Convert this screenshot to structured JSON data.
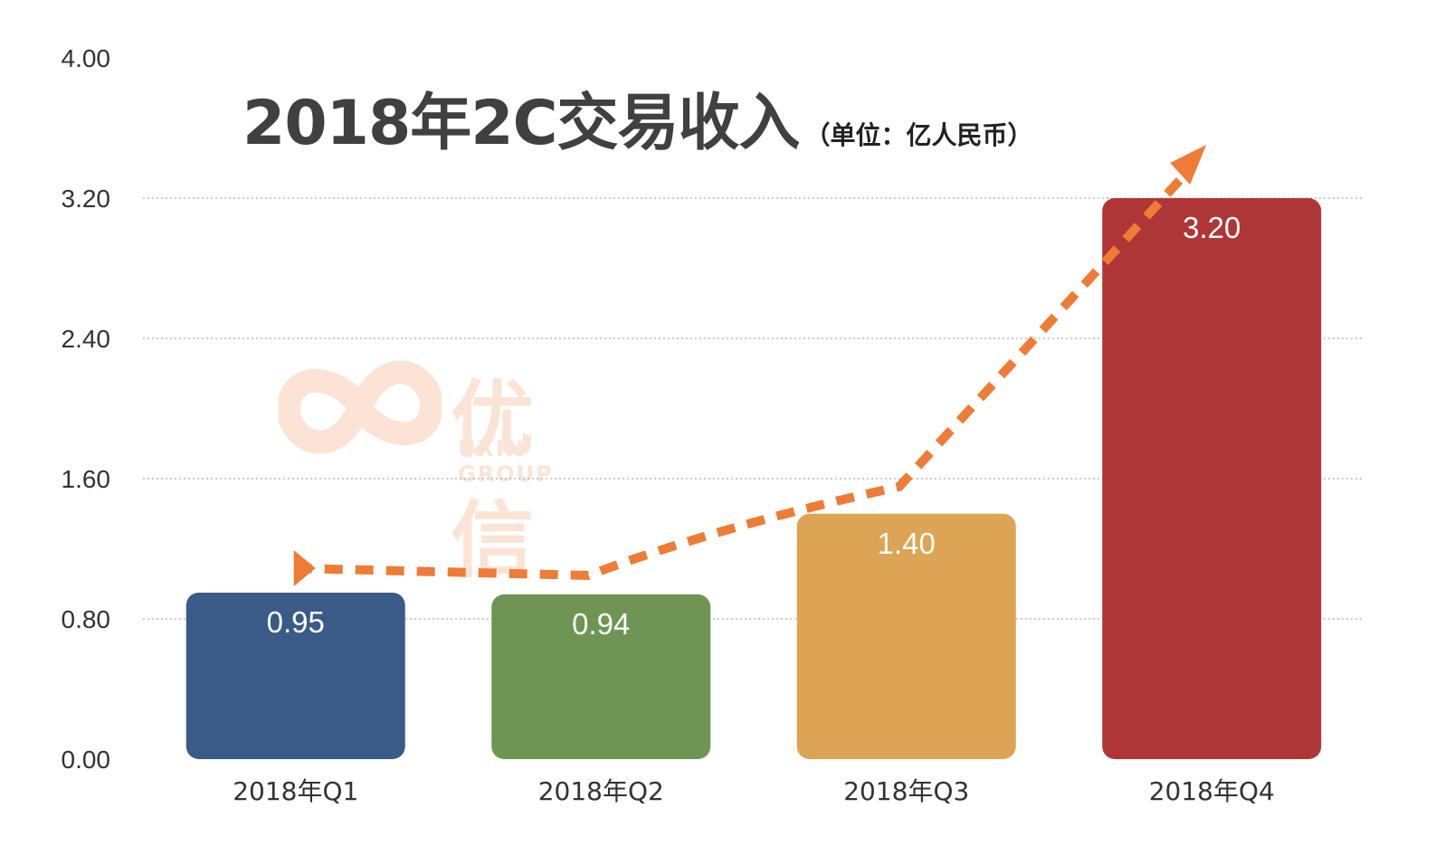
{
  "chart_data": {
    "type": "bar",
    "title": "2018年2C交易收入",
    "subtitle": "（单位：亿人民币）",
    "categories": [
      "2018年Q1",
      "2018年Q2",
      "2018年Q3",
      "2018年Q4"
    ],
    "values": [
      0.95,
      0.94,
      1.4,
      3.2
    ],
    "value_labels": [
      "0.95",
      "0.94",
      "1.40",
      "3.20"
    ],
    "ylim": [
      0,
      4.0
    ],
    "yticks": [
      "0.00",
      "0.80",
      "1.60",
      "2.40",
      "3.20",
      "4.00"
    ],
    "grid": true,
    "bar_colors": [
      "#3a5a87",
      "#6e9553",
      "#dca454",
      "#ae3636"
    ],
    "trend_arrow": {
      "color": "#ee7c36",
      "style": "dashed"
    }
  },
  "watermark": {
    "brand_cn": "优信",
    "brand_en": "UXIN GROUP",
    "color": "#f08a4b",
    "icon": "uxin-logo-icon"
  }
}
